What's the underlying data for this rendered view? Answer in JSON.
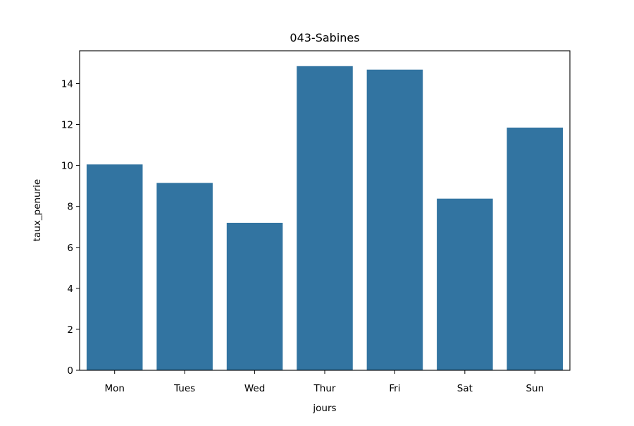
{
  "chart_data": {
    "type": "bar",
    "title": "043-Sabines",
    "xlabel": "jours",
    "ylabel": "taux_penurie",
    "categories": [
      "Mon",
      "Tues",
      "Wed",
      "Thur",
      "Fri",
      "Sat",
      "Sun"
    ],
    "values": [
      10.05,
      9.15,
      7.2,
      14.85,
      14.68,
      8.38,
      11.85
    ],
    "ylim": [
      0,
      15.6
    ],
    "yticks": [
      0,
      2,
      4,
      6,
      8,
      10,
      12,
      14
    ],
    "grid": false,
    "legend": "none",
    "bar_color": "#3274a1"
  }
}
